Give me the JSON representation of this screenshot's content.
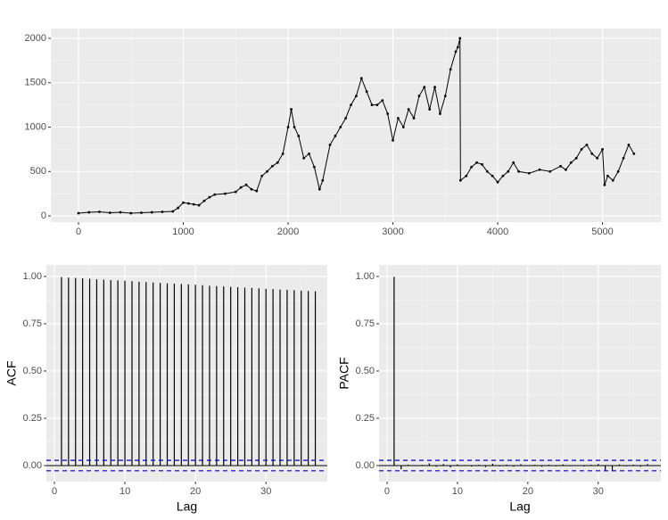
{
  "chart_data": [
    {
      "type": "line",
      "color": "#000000",
      "grid": true,
      "x": [
        0,
        100,
        200,
        300,
        400,
        500,
        600,
        700,
        800,
        900,
        950,
        1000,
        1050,
        1100,
        1150,
        1200,
        1250,
        1300,
        1400,
        1500,
        1550,
        1600,
        1650,
        1700,
        1750,
        1800,
        1850,
        1900,
        1950,
        2000,
        2030,
        2060,
        2100,
        2150,
        2200,
        2250,
        2300,
        2330,
        2400,
        2450,
        2500,
        2550,
        2600,
        2650,
        2700,
        2750,
        2800,
        2850,
        2900,
        2950,
        3000,
        3050,
        3100,
        3150,
        3200,
        3250,
        3300,
        3350,
        3400,
        3450,
        3500,
        3550,
        3600,
        3620,
        3640,
        3645,
        3700,
        3750,
        3800,
        3850,
        3900,
        3950,
        4000,
        4050,
        4100,
        4150,
        4200,
        4300,
        4400,
        4500,
        4600,
        4650,
        4700,
        4750,
        4800,
        4850,
        4900,
        4950,
        5000,
        5020,
        5050,
        5100,
        5150,
        5200,
        5250,
        5300
      ],
      "values": [
        30,
        40,
        45,
        35,
        40,
        30,
        35,
        40,
        45,
        50,
        90,
        150,
        140,
        130,
        120,
        170,
        210,
        240,
        250,
        270,
        320,
        350,
        300,
        280,
        450,
        500,
        560,
        600,
        700,
        1000,
        1200,
        1000,
        900,
        650,
        700,
        550,
        300,
        400,
        800,
        900,
        1000,
        1100,
        1250,
        1350,
        1550,
        1400,
        1250,
        1250,
        1300,
        1150,
        850,
        1100,
        1000,
        1200,
        1100,
        1350,
        1450,
        1200,
        1450,
        1150,
        1350,
        1650,
        1850,
        1900,
        2000,
        400,
        450,
        550,
        600,
        580,
        500,
        450,
        380,
        450,
        500,
        600,
        500,
        480,
        520,
        500,
        560,
        520,
        600,
        650,
        750,
        800,
        700,
        650,
        750,
        350,
        450,
        400,
        500,
        650,
        800,
        700
      ],
      "xlim": [
        -264,
        5557
      ],
      "ylim": [
        -70,
        2110
      ],
      "xticks": [
        0,
        1000,
        2000,
        3000,
        4000,
        5000
      ],
      "yticks": [
        0,
        500,
        1000,
        1500,
        2000
      ]
    },
    {
      "type": "bar",
      "color": "#000000",
      "grid": true,
      "xlabel": "Lag",
      "ylabel": "ACF",
      "x": [
        1,
        2,
        3,
        4,
        5,
        6,
        7,
        8,
        9,
        10,
        11,
        12,
        13,
        14,
        15,
        16,
        17,
        18,
        19,
        20,
        21,
        22,
        23,
        24,
        25,
        26,
        27,
        28,
        29,
        30,
        31,
        32,
        33,
        34,
        35,
        36,
        37
      ],
      "values": [
        0.997,
        0.994,
        0.992,
        0.99,
        0.988,
        0.985,
        0.983,
        0.981,
        0.979,
        0.977,
        0.975,
        0.972,
        0.97,
        0.968,
        0.966,
        0.964,
        0.962,
        0.96,
        0.958,
        0.956,
        0.954,
        0.951,
        0.949,
        0.947,
        0.945,
        0.943,
        0.941,
        0.939,
        0.937,
        0.935,
        0.933,
        0.931,
        0.929,
        0.927,
        0.925,
        0.923,
        0.921
      ],
      "hlines": [
        0.0275,
        -0.0275
      ],
      "hline_color": "#0000cc",
      "xlim": [
        -1.14,
        38.7
      ],
      "ylim": [
        -0.085,
        1.061
      ],
      "xticks": [
        0,
        10,
        20,
        30
      ],
      "yticks": [
        {
          "value": 0,
          "label": "0.00"
        },
        {
          "value": 0.25,
          "label": "0.25"
        },
        {
          "value": 0.5,
          "label": "0.50"
        },
        {
          "value": 0.75,
          "label": "0.75"
        },
        {
          "value": 1,
          "label": "1.00"
        }
      ]
    },
    {
      "type": "bar",
      "color": "#000000",
      "grid": true,
      "xlabel": "Lag",
      "ylabel": "PACF",
      "x": [
        1,
        2,
        3,
        4,
        5,
        6,
        7,
        8,
        9,
        10,
        11,
        12,
        13,
        14,
        15,
        16,
        17,
        18,
        19,
        20,
        21,
        22,
        23,
        24,
        25,
        26,
        27,
        28,
        29,
        30,
        31,
        32,
        33,
        34,
        35,
        36,
        37
      ],
      "values": [
        0.998,
        -0.02,
        0.005,
        -0.003,
        0.004,
        0.012,
        -0.006,
        0.008,
        -0.01,
        0.006,
        0.003,
        -0.005,
        0.004,
        -0.008,
        0.01,
        -0.004,
        0.005,
        -0.006,
        0.007,
        -0.003,
        0.004,
        -0.006,
        0.005,
        -0.004,
        0.006,
        -0.003,
        0.002,
        -0.005,
        0.004,
        0.008,
        -0.025,
        -0.03,
        0.006,
        -0.004,
        0.005,
        -0.006,
        0.008
      ],
      "hlines": [
        0.0275,
        -0.0275
      ],
      "hline_color": "#0000cc",
      "xlim": [
        -1.14,
        38.9
      ],
      "ylim": [
        -0.085,
        1.061
      ],
      "xticks": [
        0,
        10,
        20,
        30
      ],
      "yticks": [
        {
          "value": 0,
          "label": "0.00"
        },
        {
          "value": 0.25,
          "label": "0.25"
        },
        {
          "value": 0.5,
          "label": "0.50"
        },
        {
          "value": 0.75,
          "label": "0.75"
        },
        {
          "value": 1,
          "label": "1.00"
        }
      ]
    }
  ]
}
